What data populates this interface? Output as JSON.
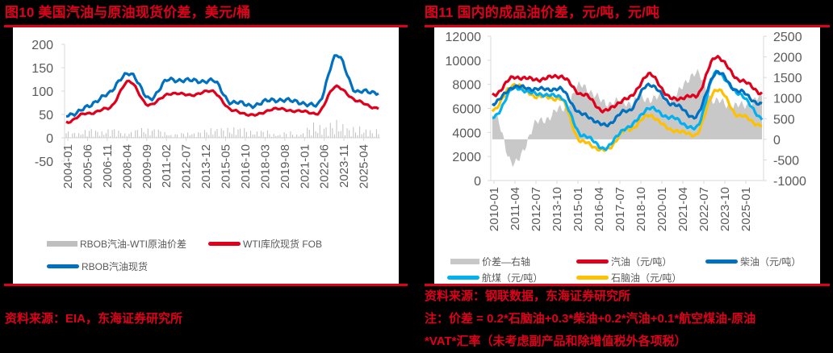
{
  "left": {
    "title": "图10  美国汽油与原油现货价差，美元/桶",
    "source": "资料来源：EIA，东海证券研究所",
    "legend": [
      {
        "label": "RBOB汽油-WTI原油价差",
        "color": "#bfbfbf",
        "kind": "bar"
      },
      {
        "label": "WTI库欣现货 FOB",
        "color": "#e1001c",
        "kind": "line"
      },
      {
        "label": "RBOB汽油现货",
        "color": "#0070c0",
        "kind": "line"
      }
    ]
  },
  "right": {
    "title": "图11  国内的成品油价差，元/吨，元/吨",
    "source": "资料来源：钢联数据，东海证券研究所",
    "note_line1": "注：价差 = 0.2*石脑油+0.3*柴油+0.2*汽油+0.1*航空煤油-原油",
    "note_line2": "*VAT*汇率（未考虑副产品和除增值税外各项税）",
    "legend": [
      {
        "label": "价差—右轴",
        "color": "#c8c8c8",
        "kind": "area"
      },
      {
        "label": "汽油（元/吨）",
        "color": "#e1001c",
        "kind": "line"
      },
      {
        "label": "柴油（元/吨）",
        "color": "#0070c0",
        "kind": "line"
      },
      {
        "label": "航煤（元/吨）",
        "color": "#00b0f0",
        "kind": "line"
      },
      {
        "label": "石脑油（元/吨）",
        "color": "#ffc000",
        "kind": "line"
      }
    ]
  },
  "chart_data": [
    {
      "type": "line",
      "title": "美国汽油与原油现货价差，美元/桶",
      "xlabel": "",
      "ylabel": "美元/桶",
      "ylim": [
        -50,
        200
      ],
      "yticks": [
        -50,
        0,
        50,
        100,
        150,
        200
      ],
      "categories": [
        "2004-01",
        "2005-06",
        "2006-11",
        "2008-04",
        "2009-09",
        "2011-02",
        "2012-07",
        "2013-12",
        "2015-05",
        "2016-10",
        "2018-03",
        "2019-08",
        "2021-01",
        "2022-06",
        "2023-11",
        "2025-04"
      ],
      "series": [
        {
          "name": "RBOB汽油-WTI原油价差",
          "type": "bar",
          "color": "#bfbfbf",
          "values": [
            12,
            18,
            20,
            15,
            25,
            10,
            12,
            22,
            25,
            18,
            12,
            10,
            30,
            35,
            22,
            18
          ]
        },
        {
          "name": "WTI库欣现货 FOB",
          "type": "line",
          "color": "#e1001c",
          "values": [
            34,
            52,
            62,
            120,
            70,
            95,
            92,
            100,
            58,
            48,
            62,
            58,
            52,
            110,
            78,
            62
          ]
        },
        {
          "name": "RBOB汽油现货",
          "type": "line",
          "color": "#0070c0",
          "values": [
            46,
            65,
            95,
            140,
            85,
            125,
            122,
            122,
            75,
            70,
            82,
            78,
            68,
            175,
            98,
            98
          ]
        }
      ],
      "legend_position": "bottom",
      "grid": false
    },
    {
      "type": "line",
      "title": "国内的成品油价差，元/吨，元/吨",
      "xlabel": "",
      "ylabel": "元/吨",
      "y2label": "元/吨",
      "ylim": [
        0,
        12000
      ],
      "y2lim": [
        -1000,
        2500
      ],
      "yticks": [
        0,
        2000,
        4000,
        6000,
        8000,
        10000,
        12000
      ],
      "y2ticks": [
        -1000,
        -500,
        0,
        500,
        1000,
        1500,
        2000,
        2500
      ],
      "categories": [
        "2010-01",
        "2011-04",
        "2012-07",
        "2013-10",
        "2015-01",
        "2016-04",
        "2017-07",
        "2018-10",
        "2020-01",
        "2021-04",
        "2022-07",
        "2023-10",
        "2025-01"
      ],
      "series": [
        {
          "name": "价差—右轴",
          "type": "area",
          "axis": "right",
          "color": "#c8c8c8",
          "values": [
            600,
            -600,
            400,
            700,
            1300,
            900,
            900,
            1000,
            1000,
            1600,
            900,
            800,
            1000
          ]
        },
        {
          "name": "汽油（元/吨）",
          "type": "line",
          "color": "#e1001c",
          "values": [
            7100,
            8600,
            8400,
            8700,
            7200,
            5800,
            6800,
            8800,
            6800,
            7000,
            10300,
            8400,
            7300
          ]
        },
        {
          "name": "柴油（元/吨）",
          "type": "line",
          "color": "#0070c0",
          "values": [
            6400,
            7800,
            7600,
            7600,
            5500,
            4600,
            5800,
            8000,
            6400,
            5300,
            9000,
            7400,
            6300
          ]
        },
        {
          "name": "航煤（元/吨）",
          "type": "line",
          "color": "#00b0f0",
          "values": [
            5200,
            7700,
            7200,
            7000,
            3800,
            2700,
            4400,
            6000,
            5200,
            4300,
            9000,
            7200,
            5200
          ]
        },
        {
          "name": "石脑油（元/吨）",
          "type": "line",
          "color": "#ffc000",
          "values": [
            5900,
            8000,
            7000,
            6800,
            3200,
            2500,
            4200,
            5400,
            4200,
            3800,
            7600,
            5400,
            4600
          ]
        }
      ],
      "legend_position": "bottom",
      "grid": false
    }
  ]
}
